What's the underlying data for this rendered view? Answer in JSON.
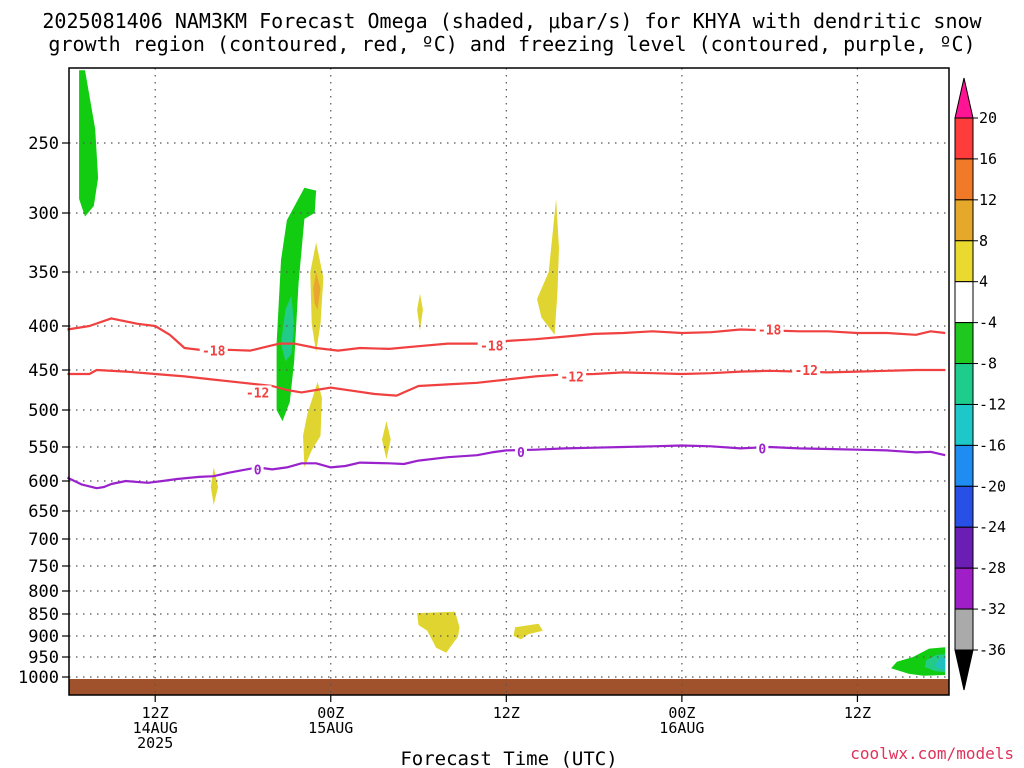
{
  "title_line1": "2025081406 NAM3KM Forecast Omega (shaded, μbar/s) for KHYA with dendritic snow",
  "title_line2": "growth region (contoured, red, ºC) and freezing level (contoured, purple, ºC)",
  "xlabel": "Forecast Time (UTC)",
  "credit": "coolwx.com/models",
  "chart_data": {
    "type": "heatmap",
    "title": "2025081406 NAM3KM Forecast Omega (shaded, μbar/s) for KHYA with dendritic snow growth region (contoured, red, ºC) and freezing level (contoured, purple, ºC)",
    "xlabel": "Forecast Time (UTC)",
    "ylabel": "",
    "x_range_hours": [
      0,
      60
    ],
    "y_axis": "pressure (hPa), reversed",
    "y_ticks": [
      250,
      300,
      350,
      400,
      450,
      500,
      550,
      600,
      650,
      700,
      750,
      800,
      850,
      900,
      950,
      1000
    ],
    "x_ticks": [
      {
        "hour": 6,
        "lines": [
          "12Z",
          "14AUG",
          "2025"
        ]
      },
      {
        "hour": 18,
        "lines": [
          "00Z",
          "15AUG"
        ]
      },
      {
        "hour": 30,
        "lines": [
          "12Z"
        ]
      },
      {
        "hour": 42,
        "lines": [
          "00Z",
          "16AUG"
        ]
      },
      {
        "hour": 54,
        "lines": [
          "12Z"
        ]
      }
    ],
    "grid": true,
    "colorbar": {
      "labels": [
        "20",
        "16",
        "12",
        "8",
        "4",
        "-4",
        "-8",
        "-12",
        "-16",
        "-20",
        "-24",
        "-28",
        "-32",
        "-36"
      ],
      "levels": [
        20,
        16,
        12,
        8,
        4,
        -4,
        -8,
        -12,
        -16,
        -20,
        -24,
        -28,
        -32,
        -36
      ],
      "colors": [
        "#ff1493",
        "#ff3c3c",
        "#f07a28",
        "#e6a82a",
        "#ead92e",
        "#ffffff",
        "#1ec81e",
        "#1ecc8c",
        "#1ec8c8",
        "#1e8cf0",
        "#2850e6",
        "#6a1eb4",
        "#a01ec8",
        "#aaaaaa",
        "#000000"
      ]
    },
    "shaded_regions": [
      {
        "label": "-4",
        "color": "#11cc11",
        "pts": [
          [
            0.8,
            198
          ],
          [
            1.2,
            198
          ],
          [
            1.9,
            240
          ],
          [
            2.1,
            275
          ],
          [
            1.8,
            295
          ],
          [
            1.2,
            303
          ],
          [
            0.8,
            290
          ]
        ]
      },
      {
        "label": "-4",
        "color": "#11cc11",
        "pts": [
          [
            15,
            306
          ],
          [
            16.2,
            282
          ],
          [
            17,
            284
          ],
          [
            16.9,
            300
          ],
          [
            16.2,
            305
          ],
          [
            15.8,
            360
          ],
          [
            15.5,
            440
          ],
          [
            15.2,
            490
          ],
          [
            14.7,
            515
          ],
          [
            14.3,
            500
          ],
          [
            14.3,
            420
          ],
          [
            14.6,
            340
          ]
        ]
      },
      {
        "label": "-8",
        "color": "#22cc88",
        "pts": [
          [
            14.9,
            385
          ],
          [
            15.3,
            372
          ],
          [
            15.5,
            400
          ],
          [
            15.3,
            432
          ],
          [
            14.9,
            440
          ],
          [
            14.6,
            420
          ]
        ]
      },
      {
        "label": "8",
        "color": "#e0d530",
        "pts": [
          [
            17,
            325
          ],
          [
            17.5,
            355
          ],
          [
            17.3,
            398
          ],
          [
            17,
            430
          ],
          [
            16.7,
            398
          ],
          [
            16.6,
            350
          ]
        ]
      },
      {
        "label": "12",
        "color": "#e8a830",
        "pts": [
          [
            17,
            350
          ],
          [
            17.3,
            365
          ],
          [
            17.1,
            385
          ],
          [
            16.9,
            380
          ],
          [
            16.8,
            365
          ]
        ]
      },
      {
        "label": "4",
        "color": "#e0d530",
        "pts": [
          [
            17.1,
            465
          ],
          [
            17.4,
            485
          ],
          [
            17.3,
            535
          ],
          [
            16.7,
            555
          ],
          [
            16.2,
            580
          ],
          [
            16.1,
            535
          ],
          [
            16.4,
            505
          ]
        ]
      },
      {
        "label": "4",
        "color": "#e0d530",
        "pts": [
          [
            21.8,
            515
          ],
          [
            22.1,
            540
          ],
          [
            21.8,
            568
          ],
          [
            21.5,
            540
          ]
        ]
      },
      {
        "label": "4",
        "color": "#e0d530",
        "pts": [
          [
            24.1,
            370
          ],
          [
            24.3,
            385
          ],
          [
            24.1,
            405
          ],
          [
            23.9,
            385
          ]
        ]
      },
      {
        "label": "4",
        "color": "#e0d530",
        "pts": [
          [
            33.4,
            290
          ],
          [
            33.6,
            330
          ],
          [
            33.5,
            368
          ],
          [
            33.3,
            410
          ],
          [
            32.4,
            392
          ],
          [
            32.1,
            375
          ],
          [
            32.9,
            350
          ]
        ]
      },
      {
        "label": "4",
        "color": "#e0d530",
        "pts": [
          [
            10,
            580
          ],
          [
            10.3,
            610
          ],
          [
            10,
            640
          ],
          [
            9.8,
            610
          ]
        ]
      },
      {
        "label": "4",
        "color": "#e0d530",
        "pts": [
          [
            23.9,
            848
          ],
          [
            26.5,
            845
          ],
          [
            26.8,
            880
          ],
          [
            26.7,
            902
          ],
          [
            26.3,
            920
          ],
          [
            25.9,
            940
          ],
          [
            25.2,
            928
          ],
          [
            24.6,
            888
          ],
          [
            24,
            875
          ]
        ]
      },
      {
        "label": "4",
        "color": "#e0d530",
        "pts": [
          [
            30.6,
            880
          ],
          [
            32.2,
            872
          ],
          [
            32.5,
            888
          ],
          [
            31.5,
            896
          ],
          [
            31,
            908
          ],
          [
            30.5,
            900
          ]
        ]
      },
      {
        "label": "-4",
        "color": "#11cc11",
        "pts": [
          [
            58.9,
            930
          ],
          [
            60,
            927
          ],
          [
            60,
            995
          ],
          [
            58.5,
            997
          ],
          [
            57.5,
            992
          ],
          [
            56.3,
            978
          ],
          [
            56.7,
            962
          ],
          [
            57.8,
            950
          ]
        ]
      },
      {
        "label": "-8",
        "color": "#22cc88",
        "pts": [
          [
            59.4,
            945
          ],
          [
            60,
            943
          ],
          [
            60,
            988
          ],
          [
            59.3,
            985
          ],
          [
            58.6,
            975
          ],
          [
            58.7,
            958
          ]
        ]
      },
      {
        "label": "-12",
        "color": "#20c0c0",
        "pts": [
          [
            59.6,
            955
          ],
          [
            60,
            950
          ],
          [
            60,
            982
          ],
          [
            59.6,
            980
          ],
          [
            59.3,
            970
          ]
        ]
      }
    ],
    "contours": [
      {
        "label": "-18",
        "color": "#f04040",
        "pts": [
          [
            0,
            404
          ],
          [
            1.5,
            400
          ],
          [
            3,
            393
          ],
          [
            4.8,
            398
          ],
          [
            6,
            400
          ],
          [
            7,
            410
          ],
          [
            8,
            425
          ],
          [
            9.5,
            428
          ],
          [
            11,
            427
          ],
          [
            12.5,
            428
          ],
          [
            13.5,
            424
          ],
          [
            14.5,
            420
          ],
          [
            15.5,
            420
          ],
          [
            17,
            425
          ],
          [
            18.5,
            428
          ],
          [
            20,
            425
          ],
          [
            22,
            426
          ],
          [
            24,
            423
          ],
          [
            26,
            420
          ],
          [
            28,
            420
          ],
          [
            30,
            417
          ],
          [
            32,
            415
          ],
          [
            34,
            412
          ],
          [
            36,
            409
          ],
          [
            38,
            408
          ],
          [
            40,
            406
          ],
          [
            42,
            408
          ],
          [
            44,
            407
          ],
          [
            46,
            404
          ],
          [
            48,
            405
          ],
          [
            50,
            406
          ],
          [
            52,
            406
          ],
          [
            54,
            408
          ],
          [
            56,
            408
          ],
          [
            58,
            410
          ],
          [
            59,
            406
          ],
          [
            60,
            408
          ]
        ]
      },
      {
        "label": "-12",
        "color": "#f04040",
        "pts": [
          [
            0,
            455
          ],
          [
            1.5,
            455
          ],
          [
            2,
            450
          ],
          [
            4,
            452
          ],
          [
            6,
            455
          ],
          [
            8,
            458
          ],
          [
            10,
            462
          ],
          [
            12,
            466
          ],
          [
            14,
            470
          ],
          [
            15,
            475
          ],
          [
            16,
            478
          ],
          [
            17,
            475
          ],
          [
            18,
            472
          ],
          [
            19.5,
            476
          ],
          [
            21,
            480
          ],
          [
            22.5,
            482
          ],
          [
            23,
            478
          ],
          [
            24,
            470
          ],
          [
            26,
            468
          ],
          [
            28,
            466
          ],
          [
            30,
            462
          ],
          [
            32,
            458
          ],
          [
            33.5,
            456
          ],
          [
            36,
            455
          ],
          [
            38,
            453
          ],
          [
            40,
            454
          ],
          [
            42,
            455
          ],
          [
            44,
            454
          ],
          [
            46,
            452
          ],
          [
            48,
            451
          ],
          [
            50,
            452
          ],
          [
            52,
            453
          ],
          [
            54,
            452
          ],
          [
            56,
            451
          ],
          [
            58,
            450
          ],
          [
            60,
            450
          ]
        ]
      },
      {
        "label": "0",
        "color": "#9922cc",
        "pts": [
          [
            0,
            595
          ],
          [
            1,
            606
          ],
          [
            2,
            612
          ],
          [
            2.5,
            610
          ],
          [
            3,
            605
          ],
          [
            4,
            600
          ],
          [
            5.5,
            603
          ],
          [
            6.5,
            600
          ],
          [
            7.5,
            597
          ],
          [
            9,
            594
          ],
          [
            10,
            593
          ],
          [
            11,
            588
          ],
          [
            12,
            584
          ],
          [
            13,
            580
          ],
          [
            14,
            583
          ],
          [
            15,
            580
          ],
          [
            16,
            574
          ],
          [
            17,
            574
          ],
          [
            18,
            580
          ],
          [
            19,
            578
          ],
          [
            20,
            573
          ],
          [
            22,
            574
          ],
          [
            23,
            575
          ],
          [
            24,
            570
          ],
          [
            26,
            565
          ],
          [
            28,
            562
          ],
          [
            29,
            558
          ],
          [
            30,
            555
          ],
          [
            32,
            554
          ],
          [
            34,
            552
          ],
          [
            36,
            551
          ],
          [
            38,
            550
          ],
          [
            40,
            549
          ],
          [
            42,
            548
          ],
          [
            44,
            549
          ],
          [
            46,
            552
          ],
          [
            48,
            550
          ],
          [
            50,
            552
          ],
          [
            52,
            553
          ],
          [
            54,
            554
          ],
          [
            56,
            555
          ],
          [
            58,
            558
          ],
          [
            59,
            557
          ],
          [
            60,
            562
          ]
        ]
      }
    ],
    "contour_labels": [
      {
        "text": "-18",
        "hour": 10,
        "p": 428
      },
      {
        "text": "-18",
        "hour": 29,
        "p": 422
      },
      {
        "text": "-18",
        "hour": 48,
        "p": 404
      },
      {
        "text": "-12",
        "hour": 13,
        "p": 478
      },
      {
        "text": "-12",
        "hour": 34.5,
        "p": 458
      },
      {
        "text": "-12",
        "hour": 50.5,
        "p": 450
      },
      {
        "text": "0",
        "hour": 13,
        "p": 583
      },
      {
        "text": "0",
        "hour": 31,
        "p": 557
      },
      {
        "text": "0",
        "hour": 47.5,
        "p": 552
      }
    ],
    "terrain": {
      "color": "#a0522d",
      "top_hpa": 1005
    }
  }
}
